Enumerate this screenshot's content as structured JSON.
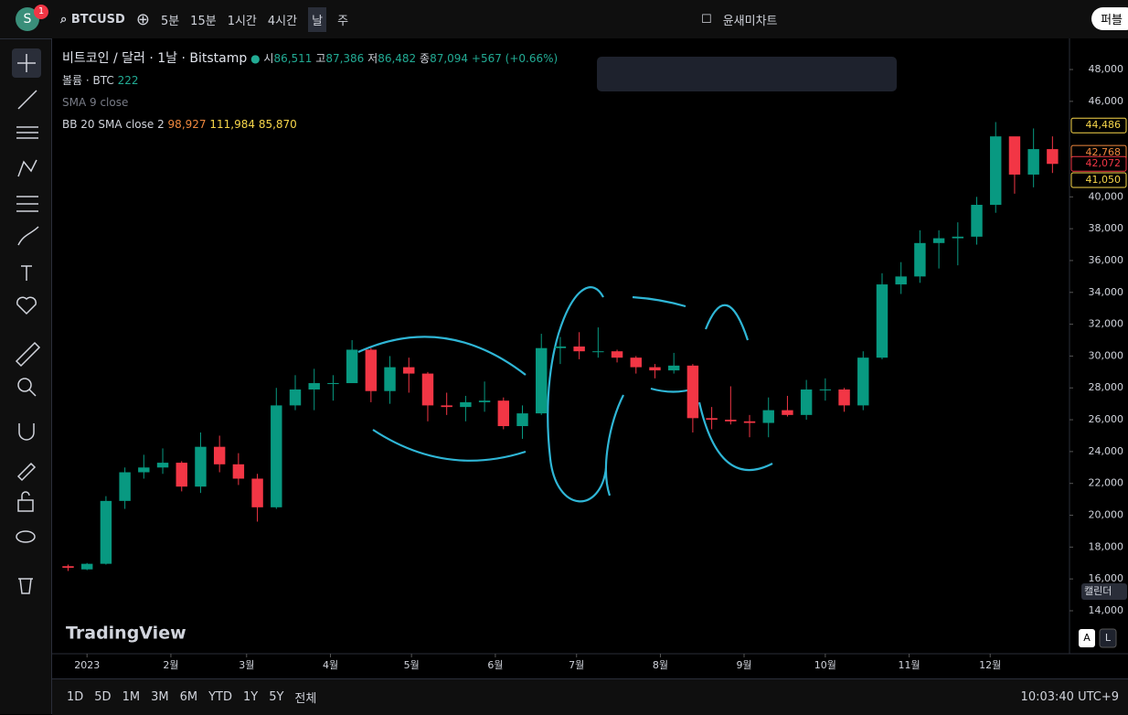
{
  "avatar": "S",
  "badge": "1",
  "toolbar": {
    "symbol": "BTCUSD",
    "intervals": [
      "5분",
      "15분",
      "1시간",
      "4시간",
      "날",
      "주"
    ],
    "layout": "윤새미차트",
    "publish": "퍼블"
  },
  "legend": {
    "title": "비트코인 / 달러 · 1날 · Bitstamp",
    "ohlc": [
      {
        "label": "시",
        "value": "86,511"
      },
      {
        "label": "고",
        "value": "87,386"
      },
      {
        "label": "저",
        "value": "86,482"
      },
      {
        "label": "종",
        "value": "87,094"
      }
    ],
    "change": "+567 (+0.66%)",
    "volume": "볼륨 · BTC",
    "volume_value": "222",
    "sma": "SMA 9 close",
    "bb": "BB 20 SMA close 2",
    "bb_values": [
      "98,927",
      "111,984",
      "85,870"
    ]
  },
  "calendar": "캘린더",
  "watermark": "TradingView",
  "scale_buttons": [
    "A",
    "L"
  ],
  "ranges": [
    "1D",
    "5D",
    "1M",
    "3M",
    "6M",
    "YTD",
    "1Y",
    "5Y",
    "전체"
  ],
  "clock": "10:03:40 UTC+9",
  "chart_data": {
    "type": "candlestick",
    "up_color": "#089981",
    "down_color": "#f23645",
    "x": [
      -1,
      0,
      1,
      2,
      3,
      4,
      5,
      6,
      7,
      8,
      9,
      10,
      11,
      12,
      13,
      14,
      15,
      16,
      17,
      18,
      19,
      20,
      21,
      22,
      23,
      24,
      25,
      26,
      27,
      28,
      29,
      30,
      31,
      32,
      33,
      34,
      35,
      36,
      37,
      38,
      39,
      40,
      41,
      42,
      43,
      44,
      45,
      46,
      47,
      48,
      49,
      50,
      51
    ],
    "open": [
      16800,
      16600,
      16950,
      20900,
      22700,
      23000,
      23300,
      21800,
      24300,
      23200,
      22300,
      20500,
      26900,
      27900,
      28300,
      28300,
      30400,
      27800,
      29300,
      28900,
      26900,
      26800,
      27100,
      27200,
      25600,
      26400,
      30500,
      30600,
      30300,
      30300,
      29900,
      29300,
      29100,
      29400,
      26100,
      26000,
      25900,
      25800,
      26600,
      26300,
      27900,
      27900,
      26900,
      29900,
      34500,
      35000,
      37100,
      37400,
      37500,
      39500,
      43800,
      41400,
      43000
    ],
    "high": [
      16900,
      17000,
      21200,
      23000,
      23800,
      24200,
      23400,
      25200,
      25000,
      23900,
      22600,
      28000,
      28800,
      29200,
      28800,
      31000,
      30500,
      30000,
      29900,
      29000,
      27700,
      27500,
      28400,
      27400,
      26900,
      31400,
      31200,
      31500,
      31800,
      30400,
      30000,
      29500,
      30200,
      29500,
      26800,
      28100,
      26300,
      27400,
      27500,
      28500,
      28600,
      28000,
      30300,
      35200,
      35900,
      37900,
      37900,
      38400,
      40000,
      44700,
      43500,
      44300,
      43800
    ],
    "low": [
      16500,
      16550,
      16900,
      20400,
      22300,
      22600,
      21500,
      21400,
      22700,
      21900,
      19600,
      20400,
      26600,
      26600,
      27200,
      28300,
      27100,
      27000,
      27700,
      25900,
      26300,
      25900,
      26500,
      25400,
      24800,
      26300,
      29500,
      29800,
      29900,
      29600,
      28900,
      28600,
      28900,
      25200,
      25400,
      25700,
      24900,
      24900,
      26200,
      26000,
      27200,
      26500,
      26600,
      29800,
      33900,
      34600,
      35500,
      35700,
      37000,
      39000,
      40200,
      40600,
      41500
    ],
    "close": [
      16700,
      16950,
      20900,
      22700,
      23000,
      23300,
      21800,
      24300,
      23200,
      22300,
      20500,
      26900,
      27900,
      28300,
      28300,
      30400,
      27800,
      29300,
      28900,
      26900,
      26800,
      27100,
      27200,
      25600,
      26400,
      30500,
      30600,
      30300,
      30300,
      29900,
      29300,
      29100,
      29400,
      26100,
      26000,
      25900,
      25800,
      26600,
      26300,
      27900,
      27900,
      26900,
      29900,
      34500,
      35000,
      37100,
      37400,
      37500,
      39500,
      43800,
      41400,
      43000,
      42072
    ],
    "xlim": [
      -1.7,
      51.9
    ],
    "xticks": [
      {
        "value": 0,
        "label": "2023"
      },
      {
        "value": 4.43,
        "label": "2월"
      },
      {
        "value": 8.43,
        "label": "3월"
      },
      {
        "value": 12.86,
        "label": "4월"
      },
      {
        "value": 17.14,
        "label": "5월"
      },
      {
        "value": 21.57,
        "label": "6월"
      },
      {
        "value": 25.86,
        "label": "7월"
      },
      {
        "value": 30.29,
        "label": "8월"
      },
      {
        "value": 34.71,
        "label": "9월"
      },
      {
        "value": 39,
        "label": "10월"
      },
      {
        "value": 43.43,
        "label": "11월"
      },
      {
        "value": 47.71,
        "label": "12월"
      }
    ],
    "ylim": [
      11300,
      49840
    ],
    "yticks": [
      {
        "value": 14000,
        "label": "14,000"
      },
      {
        "value": 16000,
        "label": "16,000"
      },
      {
        "value": 18000,
        "label": "18,000"
      },
      {
        "value": 20000,
        "label": "20,000"
      },
      {
        "value": 22000,
        "label": "22,000"
      },
      {
        "value": 24000,
        "label": "24,000"
      },
      {
        "value": 26000,
        "label": "26,000"
      },
      {
        "value": 28000,
        "label": "28,000"
      },
      {
        "value": 30000,
        "label": "30,000"
      },
      {
        "value": 32000,
        "label": "32,000"
      },
      {
        "value": 34000,
        "label": "34,000"
      },
      {
        "value": 36000,
        "label": "36,000"
      },
      {
        "value": 38000,
        "label": "38,000"
      },
      {
        "value": 40000,
        "label": "40,000"
      },
      {
        "value": 46000,
        "label": "46,000"
      },
      {
        "value": 48000,
        "label": "48,000"
      }
    ],
    "markers": [
      {
        "value": 44486,
        "label": "44,486",
        "color": "#f7d64a"
      },
      {
        "value": 42768,
        "label": "42,768",
        "color": "#f0883e"
      },
      {
        "value": 42072,
        "label": "42,072",
        "color": "#f23645"
      },
      {
        "value": 41050,
        "label": "41,050",
        "color": "#f7d64a"
      }
    ]
  }
}
